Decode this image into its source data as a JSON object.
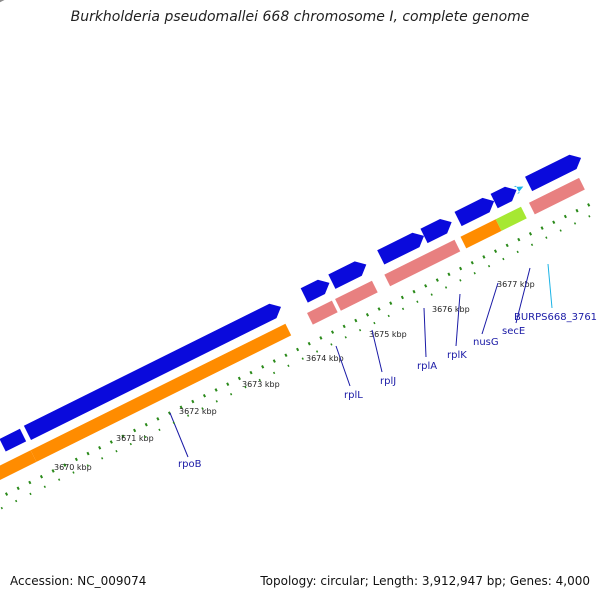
{
  "title": "Burkholderia pseudomallei 668 chromosome I, complete genome",
  "footer": {
    "accession": "Accession: NC_009074",
    "topology": "Topology: circular; Length: 3,912,947 bp; Genes: 4,000"
  },
  "colors": {
    "backbone": "#8c8c8c",
    "cds": "#0a0adc",
    "gene_bar": "#ff8c00",
    "rna_bar": "#e88080",
    "gc_marks": "#2a8a1a",
    "highlight": "#a6e832",
    "label": "#1a1aa6",
    "label_cyan": "#19b3e6"
  },
  "scale_labels": [
    {
      "text": "3670 kbp"
    },
    {
      "text": "3671 kbp"
    },
    {
      "text": "3672 kbp"
    },
    {
      "text": "3673 kbp"
    },
    {
      "text": "3674 kbp"
    },
    {
      "text": "3675 kbp"
    },
    {
      "text": "3676 kbp"
    },
    {
      "text": "3677 kbp"
    }
  ],
  "gene_labels": [
    {
      "name": "rpoB"
    },
    {
      "name": "rplL"
    },
    {
      "name": "rplJ"
    },
    {
      "name": "rplA"
    },
    {
      "name": "rplK"
    },
    {
      "name": "nusG"
    },
    {
      "name": "secE"
    },
    {
      "name": "BURPS668_3761"
    }
  ]
}
